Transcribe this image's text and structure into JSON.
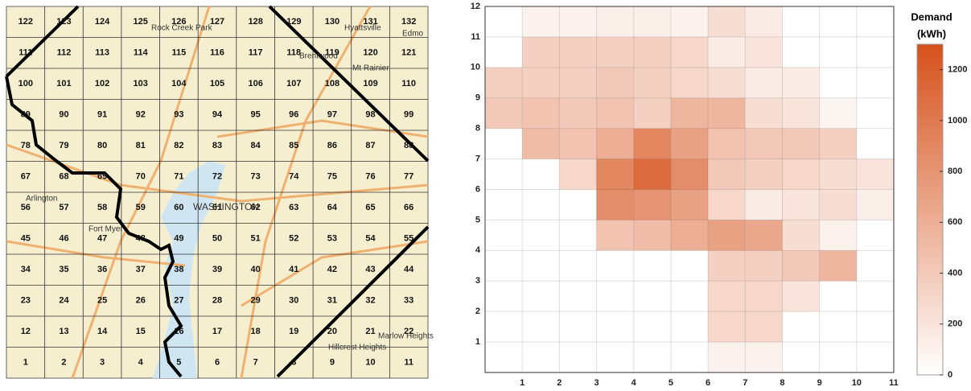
{
  "map": {
    "cells": [
      "1",
      "2",
      "3",
      "4",
      "5",
      "6",
      "7",
      "8",
      "9",
      "10",
      "11",
      "12",
      "13",
      "14",
      "15",
      "16",
      "17",
      "18",
      "19",
      "20",
      "21",
      "22",
      "23",
      "24",
      "25",
      "26",
      "27",
      "28",
      "29",
      "30",
      "31",
      "32",
      "33",
      "34",
      "35",
      "36",
      "37",
      "38",
      "39",
      "40",
      "41",
      "42",
      "43",
      "44",
      "45",
      "46",
      "47",
      "48",
      "49",
      "50",
      "51",
      "52",
      "53",
      "54",
      "55",
      "56",
      "57",
      "58",
      "59",
      "60",
      "61",
      "62",
      "63",
      "64",
      "65",
      "66",
      "67",
      "68",
      "69",
      "70",
      "71",
      "72",
      "73",
      "74",
      "75",
      "76",
      "77",
      "78",
      "79",
      "80",
      "81",
      "82",
      "83",
      "84",
      "85",
      "86",
      "87",
      "88",
      "89",
      "90",
      "91",
      "92",
      "93",
      "94",
      "95",
      "96",
      "97",
      "98",
      "99",
      "100",
      "101",
      "102",
      "103",
      "104",
      "105",
      "106",
      "107",
      "108",
      "109",
      "110",
      "111",
      "112",
      "113",
      "114",
      "115",
      "116",
      "117",
      "118",
      "119",
      "120",
      "121",
      "122",
      "123",
      "124",
      "125",
      "126",
      "127",
      "128",
      "129",
      "130",
      "131",
      "132"
    ],
    "places": {
      "arlington": "Arlington",
      "washington": "WASHINGTON",
      "fort_myer": "Fort Myer",
      "hyattsville": "Hyattsville",
      "mt_rainier": "Mt Rainier",
      "brentwood": "Brentwood",
      "hillcrest": "Hillcrest Heights",
      "marlow": "Marlow Heights",
      "rock_creek": "Rock Creek Park",
      "edmo": "Edmo"
    }
  },
  "chart_data": {
    "type": "heatmap",
    "xlim": [
      0,
      11
    ],
    "ylim": [
      0,
      12
    ],
    "xticks": [
      1,
      2,
      3,
      4,
      5,
      6,
      7,
      8,
      9,
      10,
      11
    ],
    "yticks": [
      1,
      2,
      3,
      4,
      5,
      6,
      7,
      8,
      9,
      10,
      11,
      12
    ],
    "grid": true,
    "values": [
      [
        null,
        null,
        null,
        null,
        null,
        null,
        100,
        100,
        null,
        null,
        null
      ],
      [
        null,
        null,
        null,
        null,
        null,
        null,
        300,
        300,
        null,
        null,
        null
      ],
      [
        null,
        null,
        null,
        null,
        null,
        null,
        300,
        300,
        200,
        null,
        null
      ],
      [
        null,
        null,
        null,
        null,
        null,
        null,
        350,
        350,
        400,
        550,
        null
      ],
      [
        null,
        null,
        null,
        450,
        500,
        600,
        700,
        650,
        250,
        100,
        null
      ],
      [
        null,
        null,
        null,
        850,
        800,
        700,
        300,
        150,
        200,
        250,
        120
      ],
      [
        null,
        null,
        300,
        900,
        1100,
        850,
        400,
        350,
        300,
        250,
        200
      ],
      [
        null,
        500,
        450,
        600,
        900,
        700,
        450,
        400,
        400,
        350,
        null
      ],
      [
        400,
        450,
        400,
        450,
        350,
        550,
        550,
        250,
        200,
        80,
        null
      ],
      [
        350,
        350,
        350,
        400,
        350,
        300,
        250,
        150,
        150,
        null,
        null
      ],
      [
        null,
        350,
        350,
        350,
        350,
        300,
        150,
        200,
        null,
        null,
        null
      ],
      [
        null,
        100,
        100,
        120,
        120,
        100,
        250,
        150,
        null,
        null,
        null
      ]
    ],
    "colorbar_title": [
      "Demand",
      "(kWh)"
    ],
    "zlim": [
      0,
      1300
    ],
    "zticks": [
      0,
      200,
      400,
      600,
      800,
      1000,
      1200
    ],
    "colormap": [
      "#ffffff",
      "#d6511b"
    ]
  }
}
